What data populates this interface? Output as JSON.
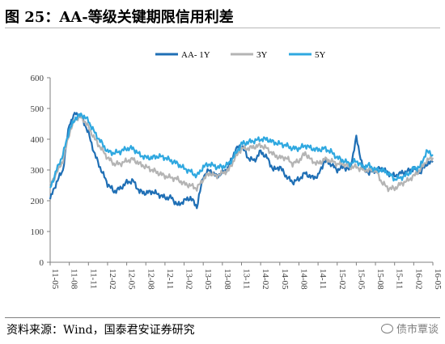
{
  "title": "图 25：AA-等级关键期限信用利差",
  "source": "资料来源：Wind，国泰君安证券研究",
  "watermark": "债市覃谈",
  "chart_data": {
    "type": "line",
    "ylim": [
      0,
      600
    ],
    "yticks": [
      0,
      100,
      200,
      300,
      400,
      500,
      600
    ],
    "xticks": [
      "11-05",
      "11-08",
      "11-11",
      "12-02",
      "12-05",
      "12-08",
      "12-11",
      "13-02",
      "13-05",
      "13-08",
      "13-11",
      "14-02",
      "14-05",
      "14-08",
      "14-11",
      "15-02",
      "15-05",
      "15-08",
      "15-11",
      "16-02",
      "16-05"
    ],
    "x": [
      "11-05",
      "11-06",
      "11-07",
      "11-08",
      "11-09",
      "11-10",
      "11-11",
      "11-12",
      "12-01",
      "12-02",
      "12-03",
      "12-04",
      "12-05",
      "12-06",
      "12-07",
      "12-08",
      "12-09",
      "12-10",
      "12-11",
      "12-12",
      "13-01",
      "13-02",
      "13-03",
      "13-04",
      "13-05",
      "13-06",
      "13-07",
      "13-08",
      "13-09",
      "13-10",
      "13-11",
      "13-12",
      "14-01",
      "14-02",
      "14-03",
      "14-04",
      "14-05",
      "14-06",
      "14-07",
      "14-08",
      "14-09",
      "14-10",
      "14-11",
      "14-12",
      "15-01",
      "15-02",
      "15-03",
      "15-04",
      "15-05",
      "15-06",
      "15-07",
      "15-08",
      "15-09",
      "15-10",
      "15-11",
      "15-12",
      "16-01",
      "16-02",
      "16-03",
      "16-04",
      "16-05"
    ],
    "legend_position": "top",
    "series": [
      {
        "name": "AA- 1Y",
        "color": "#1f6fb5",
        "values": [
          205,
          260,
          300,
          450,
          485,
          470,
          420,
          350,
          300,
          255,
          230,
          240,
          260,
          265,
          230,
          225,
          230,
          220,
          210,
          210,
          185,
          200,
          210,
          180,
          280,
          300,
          280,
          290,
          310,
          365,
          380,
          340,
          330,
          360,
          340,
          300,
          310,
          280,
          260,
          270,
          290,
          275,
          280,
          330,
          320,
          300,
          310,
          300,
          405,
          310,
          290,
          300,
          305,
          290,
          280,
          290,
          295,
          305,
          290,
          320,
          325
        ]
      },
      {
        "name": "3Y",
        "color": "#b4b4b4",
        "values": [
          250,
          290,
          330,
          420,
          470,
          470,
          440,
          400,
          370,
          340,
          320,
          320,
          330,
          335,
          320,
          310,
          300,
          290,
          280,
          275,
          270,
          255,
          250,
          240,
          270,
          290,
          280,
          290,
          300,
          340,
          370,
          370,
          375,
          380,
          370,
          350,
          340,
          340,
          320,
          330,
          355,
          330,
          320,
          335,
          330,
          320,
          320,
          310,
          310,
          300,
          300,
          300,
          260,
          240,
          240,
          255,
          265,
          280,
          300,
          330,
          340
        ]
      },
      {
        "name": "5Y",
        "color": "#2fa8e0",
        "values": [
          240,
          300,
          350,
          430,
          470,
          480,
          460,
          420,
          390,
          360,
          355,
          360,
          370,
          370,
          350,
          340,
          340,
          345,
          340,
          330,
          320,
          305,
          295,
          280,
          310,
          320,
          310,
          310,
          320,
          350,
          385,
          390,
          395,
          400,
          400,
          390,
          385,
          380,
          370,
          370,
          380,
          370,
          365,
          370,
          360,
          340,
          330,
          320,
          330,
          310,
          315,
          300,
          300,
          290,
          270,
          275,
          285,
          305,
          310,
          360,
          350
        ]
      }
    ]
  }
}
